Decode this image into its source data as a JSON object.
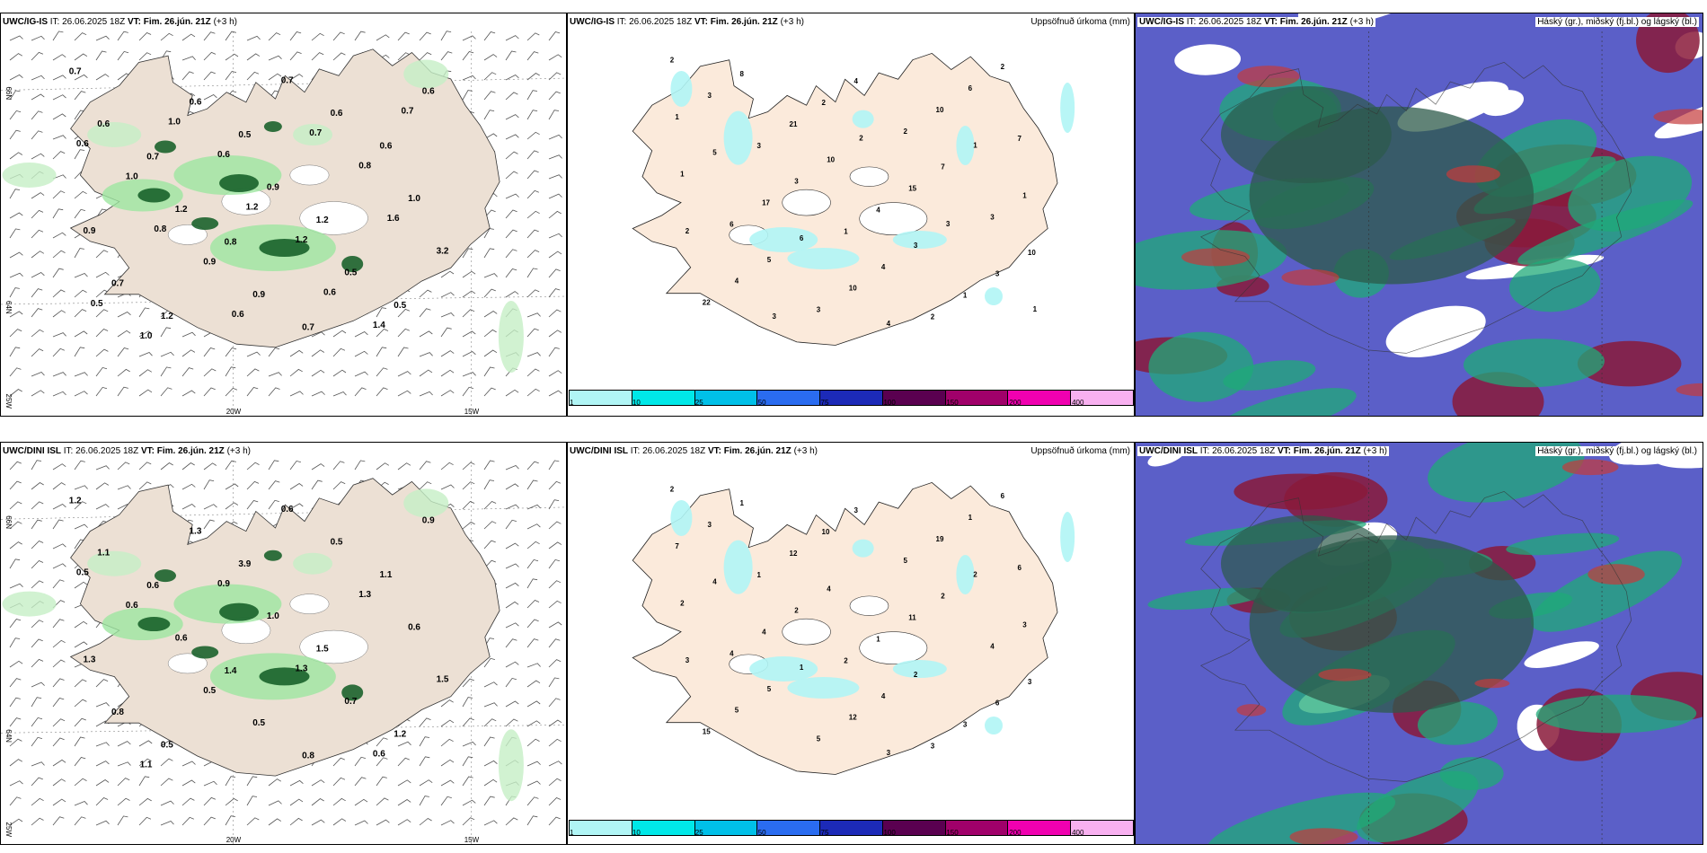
{
  "panels": {
    "p1": {
      "model": "UWC/IG-IS",
      "it": "IT: 26.06.2025 18Z",
      "vt_label": "VT:",
      "vt": "Fim. 26.jún. 21Z",
      "lead": "(+3 h)",
      "right": ""
    },
    "p2": {
      "model": "UWC/IG-IS",
      "it": "IT: 26.06.2025 18Z",
      "vt_label": "VT:",
      "vt": "Fim. 26.jún. 21Z",
      "lead": "(+3 h)",
      "right": "Uppsöfnuð úrkoma (mm)"
    },
    "p3": {
      "model": "UWC/IG-IS",
      "it": "IT: 26.06.2025 18Z",
      "vt_label": "VT:",
      "vt": "Fim. 26.jún. 21Z",
      "lead": "(+3 h)",
      "right": "Háský (gr.), miðský (fj.bl.) og lágský (bl.)"
    },
    "p4": {
      "model": "UWC/DINI ISL",
      "it": "IT: 26.06.2025 18Z",
      "vt_label": "VT:",
      "vt": "Fim. 26.jún. 21Z",
      "lead": "(+3 h)",
      "right": ""
    },
    "p5": {
      "model": "UWC/DINI ISL",
      "it": "IT: 26.06.2025 18Z",
      "vt_label": "VT:",
      "vt": "Fim. 26.jún. 21Z",
      "lead": "(+3 h)",
      "right": "Uppsöfnuð úrkoma (mm)"
    },
    "p6": {
      "model": "UWC/DINI ISL",
      "it": "IT: 26.06.2025 18Z",
      "vt_label": "VT:",
      "vt": "Fim. 26.jún. 21Z",
      "lead": "(+3 h)",
      "right": "Háský (gr.), miðský (fj.bl.) og lágský (bl.)"
    }
  },
  "axes": {
    "lon1": "20W",
    "lon2": "15W",
    "lat1": "66N",
    "lat2": "64N",
    "lon_left": "25W"
  },
  "colorbar": {
    "labels": [
      "1",
      "10",
      "25",
      "50",
      "75",
      "100",
      "150",
      "200",
      "400"
    ],
    "colors": [
      "#b0f5f5",
      "#00e8e8",
      "#00c0e8",
      "#2a6cf0",
      "#1c2ab8",
      "#5a0050",
      "#a0006a",
      "#f000b0",
      "#f8b0f0"
    ]
  },
  "map_labels": {
    "p1": [
      "0.7",
      "0.7",
      "0.8",
      "0.7",
      "0.6",
      "0.9",
      "1.2",
      "0.5",
      "1.2",
      "0.5",
      "0.6",
      "1.2",
      "0.9",
      "0.6",
      "1.0",
      "0.7",
      "0.6",
      "0.9",
      "0.5",
      "0.6",
      "1.0",
      "0.9",
      "0.7",
      "0.8",
      "3.2",
      "1.0",
      "0.6",
      "1.2",
      "1.4",
      "0.6",
      "0.8",
      "0.6",
      "0.7",
      "1.6",
      "0.5",
      "1.0",
      "1.2",
      "0.6",
      "0.7"
    ],
    "p2": [
      "2",
      "3",
      "1",
      "2",
      "7",
      "6",
      "3",
      "2",
      "3",
      "22",
      "21",
      "4",
      "1",
      "1",
      "17",
      "10",
      "10",
      "1",
      "4",
      "2",
      "15",
      "3",
      "3",
      "3",
      "4",
      "6",
      "1",
      "5",
      "4",
      "7",
      "10",
      "8",
      "10",
      "3",
      "2",
      "5",
      "6",
      "4",
      "1",
      "2",
      "3",
      "2",
      "3",
      "1"
    ],
    "p4": [
      "1.2",
      "0.6",
      "1.4",
      "0.8",
      "1.1",
      "1.3",
      "0.5",
      "3.9",
      "1.5",
      "1.2",
      "1.1",
      "0.6",
      "0.5",
      "0.5",
      "0.6",
      "0.8",
      "1.3",
      "1.0",
      "0.7",
      "0.9",
      "0.6",
      "0.5",
      "0.6",
      "1.3",
      "1.5",
      "1.1",
      "0.9",
      "1.3",
      "0.6",
      "0.5"
    ],
    "p5": [
      "2",
      "1",
      "2",
      "3",
      "6",
      "4",
      "5",
      "5",
      "4",
      "15",
      "12",
      "1",
      "3",
      "7",
      "4",
      "12",
      "19",
      "3",
      "5",
      "10",
      "11",
      "6",
      "3",
      "2",
      "4",
      "1",
      "2",
      "5",
      "3",
      "2",
      "3",
      "1",
      "4",
      "2",
      "6",
      "4",
      "1",
      "3",
      "2",
      "3"
    ]
  },
  "icons": {
    "coastline": "coastline-icon",
    "wind": "wind-barb-icon"
  }
}
